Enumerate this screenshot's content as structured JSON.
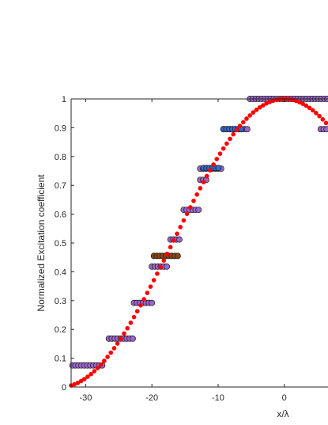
{
  "chart_data": {
    "type": "scatter",
    "title": "",
    "xlabel": "x/λ",
    "ylabel": "Normalized Excitation coefficient",
    "xlim": [
      -32.2,
      6.6
    ],
    "ylim": [
      0,
      1
    ],
    "x_ticks": [
      -30,
      -20,
      -10,
      0
    ],
    "y_ticks": [
      0,
      0.1,
      0.2,
      0.3,
      0.4,
      0.5,
      0.6,
      0.7,
      0.8,
      0.9,
      1
    ],
    "grid": false,
    "legend": "none",
    "series": [
      {
        "color": "#ff0000",
        "marker": "dot",
        "function": "cos",
        "x_range": [
          -32.2,
          6.6
        ],
        "x_step": 0.5,
        "period_scale": 0.0465
      },
      {
        "color": "#9966cc",
        "marker": "circle",
        "segments": [
          {
            "x": [
              -32.0,
              -27.5
            ],
            "y": 0.075
          },
          {
            "x": [
              -26.5,
              -22.5
            ],
            "y": 0.168
          },
          {
            "x": [
              -22.7,
              -19.7
            ],
            "y": 0.292
          },
          {
            "x": [
              -20.0,
              -17.5
            ],
            "y": 0.418
          },
          {
            "x": [
              -17.2,
              -15.7
            ],
            "y": 0.512
          },
          {
            "x": [
              -15.2,
              -12.7
            ],
            "y": 0.615
          },
          {
            "x": [
              -12.7,
              -11.7
            ],
            "y": 0.719
          },
          {
            "x": [
              -12.7,
              -9.2
            ],
            "y": 0.758
          },
          {
            "x": [
              -9.2,
              -5.2
            ],
            "y": 0.895
          },
          {
            "x": [
              -5.2,
              6.6
            ],
            "y": 1.0
          },
          {
            "x": [
              5.5,
              6.6
            ],
            "y": 0.895
          }
        ]
      },
      {
        "color": "#8b4513",
        "marker": "circle",
        "segments": [
          {
            "x": [
              -19.7,
              -15.7
            ],
            "y": 0.455
          }
        ]
      },
      {
        "color": "#3366cc",
        "marker": "circle",
        "segments": [
          {
            "x": [
              -12.2,
              -9.7
            ],
            "y": 0.76
          },
          {
            "x": [
              -9.2,
              -6.2
            ],
            "y": 0.895
          }
        ]
      }
    ]
  }
}
